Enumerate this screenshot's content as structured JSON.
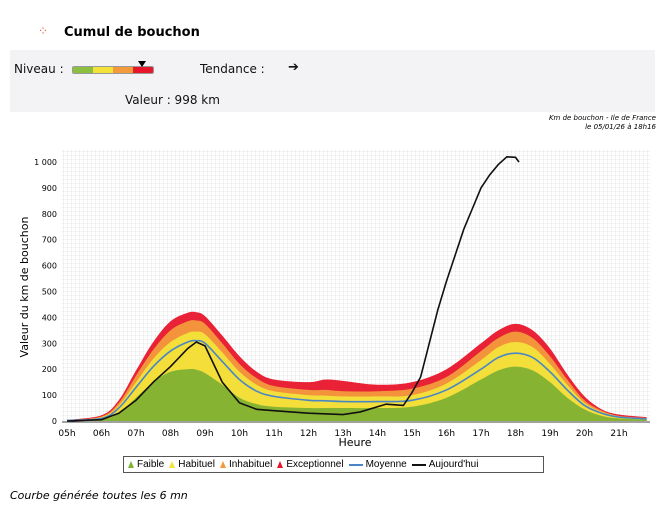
{
  "header": {
    "title": "Cumul de bouchon",
    "icon": "traffic-icon"
  },
  "panel": {
    "niveau_label": "Niveau :",
    "tendance_label": "Tendance :",
    "tendance_icon": "arrow-right",
    "valeur_text": "Valeur : 998 km",
    "gauge_colors": [
      "#8cbf3f",
      "#f2e23a",
      "#f39a3c",
      "#e8162b"
    ],
    "gauge_level": 0.88
  },
  "source": {
    "line1": "Km de bouchon - Ile de France",
    "line2": "le 05/01/26 à 18h16"
  },
  "footer": "Courbe générée toutes les 6 mn",
  "chart_data": {
    "type": "area",
    "xlabel": "Heure",
    "ylabel": "Valeur du  km de bouchon",
    "xlim": [
      5,
      21.8
    ],
    "ylim": [
      0,
      1050
    ],
    "x_ticks": [
      "05h",
      "06h",
      "07h",
      "08h",
      "09h",
      "10h",
      "11h",
      "12h",
      "13h",
      "14h",
      "15h",
      "16h",
      "17h",
      "18h",
      "19h",
      "20h",
      "21h"
    ],
    "y_ticks": [
      "0",
      "100",
      "200",
      "300",
      "400",
      "500",
      "600",
      "700",
      "800",
      "900",
      "1 000"
    ],
    "grid": true,
    "legend": "bottom",
    "x": [
      5,
      6,
      6.5,
      7,
      7.5,
      8,
      8.5,
      8.75,
      9,
      9.5,
      10,
      10.5,
      11,
      12,
      12.5,
      13,
      14,
      15,
      16,
      17,
      17.5,
      18,
      18.5,
      19,
      19.5,
      20,
      20.5,
      21,
      21.8
    ],
    "series": [
      {
        "name": "Faible",
        "color": "#7fb132",
        "values": [
          0,
          5,
          30,
          90,
          150,
          190,
          200,
          198,
          185,
          140,
          90,
          65,
          55,
          50,
          50,
          50,
          50,
          55,
          90,
          160,
          195,
          210,
          195,
          150,
          90,
          45,
          20,
          10,
          5
        ]
      },
      {
        "name": "Habituel",
        "color": "#f2e23a",
        "values": [
          2,
          15,
          60,
          150,
          240,
          305,
          340,
          345,
          335,
          265,
          190,
          140,
          115,
          100,
          98,
          95,
          95,
          100,
          145,
          235,
          285,
          305,
          285,
          220,
          140,
          70,
          35,
          18,
          10
        ]
      },
      {
        "name": "Inhabituel",
        "color": "#f39a3c",
        "values": [
          3,
          18,
          70,
          175,
          275,
          350,
          385,
          388,
          375,
          300,
          220,
          165,
          135,
          120,
          120,
          115,
          115,
          125,
          170,
          270,
          320,
          345,
          320,
          250,
          160,
          80,
          40,
          20,
          12
        ]
      },
      {
        "name": "Exceptionnel",
        "color": "#e8162b",
        "values": [
          4,
          22,
          80,
          195,
          305,
          385,
          418,
          420,
          405,
          330,
          250,
          190,
          160,
          150,
          160,
          155,
          140,
          150,
          200,
          300,
          350,
          375,
          350,
          280,
          180,
          95,
          45,
          25,
          15
        ]
      },
      {
        "name": "Moyenne",
        "color": "#4a86c5",
        "values": [
          2,
          10,
          50,
          130,
          210,
          270,
          305,
          310,
          300,
          230,
          160,
          115,
          95,
          80,
          78,
          75,
          75,
          80,
          120,
          200,
          245,
          262,
          245,
          190,
          120,
          60,
          30,
          15,
          8
        ]
      }
    ],
    "today": {
      "name": "Aujourd'hui",
      "color": "#111111",
      "x": [
        5,
        6,
        6.5,
        7,
        7.5,
        8,
        8.5,
        8.75,
        9,
        9.25,
        9.5,
        10,
        10.5,
        11,
        11.5,
        12,
        13,
        13.5,
        14,
        14.25,
        14.75,
        15,
        15.25,
        15.5,
        15.75,
        16,
        16.25,
        16.5,
        16.75,
        17,
        17.25,
        17.5,
        17.75,
        18,
        18.1
      ],
      "values": [
        0,
        5,
        30,
        80,
        150,
        210,
        280,
        305,
        290,
        220,
        150,
        70,
        45,
        40,
        35,
        30,
        25,
        35,
        55,
        65,
        60,
        110,
        170,
        300,
        430,
        540,
        640,
        740,
        820,
        900,
        950,
        990,
        1020,
        1018,
        1000
      ]
    }
  }
}
